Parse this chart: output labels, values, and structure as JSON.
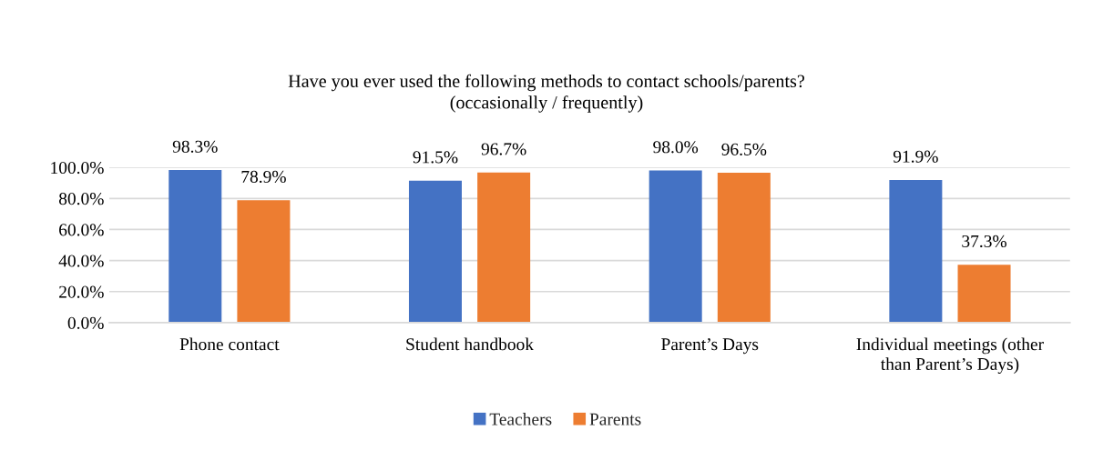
{
  "chart_data": {
    "type": "bar",
    "title": "Have you ever used the following methods to contact schools/parents?\n(occasionally / frequently)",
    "categories": [
      "Phone contact",
      "Student handbook",
      "Parent’s Days",
      "Individual meetings (other\nthan Parent’s Days)"
    ],
    "series": [
      {
        "name": "Teachers",
        "color": "#4472c4",
        "values": [
          98.3,
          91.5,
          98.0,
          91.9
        ],
        "value_labels": [
          "98.3%",
          "91.5%",
          "98.0%",
          "91.9%"
        ]
      },
      {
        "name": "Parents",
        "color": "#ed7d31",
        "values": [
          78.9,
          96.7,
          96.5,
          37.3
        ],
        "value_labels": [
          "78.9%",
          "96.7%",
          "96.5%",
          "37.3%"
        ]
      }
    ],
    "ylim": [
      0,
      100
    ],
    "yticks": [
      {
        "value": 0,
        "label": "0.0%"
      },
      {
        "value": 20,
        "label": "20.0%"
      },
      {
        "value": 40,
        "label": "40.0%"
      },
      {
        "value": 60,
        "label": "60.0%"
      },
      {
        "value": 80,
        "label": "80.0%"
      },
      {
        "value": 100,
        "label": "100.0%"
      }
    ],
    "grid": "y",
    "legend": "bottom"
  }
}
